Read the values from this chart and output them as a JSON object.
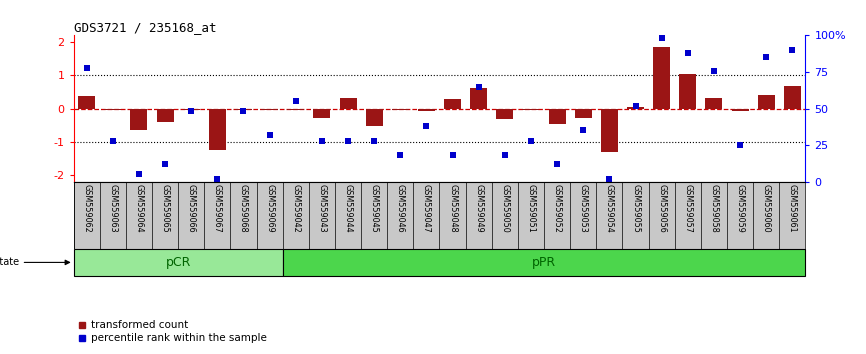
{
  "title": "GDS3721 / 235168_at",
  "samples": [
    "GSM559062",
    "GSM559063",
    "GSM559064",
    "GSM559065",
    "GSM559066",
    "GSM559067",
    "GSM559068",
    "GSM559069",
    "GSM559042",
    "GSM559043",
    "GSM559044",
    "GSM559045",
    "GSM559046",
    "GSM559047",
    "GSM559048",
    "GSM559049",
    "GSM559050",
    "GSM559051",
    "GSM559052",
    "GSM559053",
    "GSM559054",
    "GSM559055",
    "GSM559056",
    "GSM559057",
    "GSM559058",
    "GSM559059",
    "GSM559060",
    "GSM559061"
  ],
  "transformed_count": [
    0.38,
    -0.04,
    -0.65,
    -0.42,
    -0.04,
    -1.25,
    -0.04,
    -0.04,
    -0.04,
    -0.28,
    0.32,
    -0.52,
    -0.04,
    -0.08,
    0.28,
    0.62,
    -0.32,
    -0.04,
    -0.48,
    -0.28,
    -1.3,
    0.05,
    1.85,
    1.05,
    0.32,
    -0.08,
    0.42,
    0.68
  ],
  "percentile_rank": [
    78,
    28,
    5,
    12,
    48,
    2,
    48,
    32,
    55,
    28,
    28,
    28,
    18,
    38,
    18,
    65,
    18,
    28,
    12,
    35,
    2,
    52,
    98,
    88,
    76,
    25,
    85,
    90
  ],
  "pcr_count": 8,
  "ppr_count": 20,
  "bar_color": "#9B1515",
  "dot_color": "#0000CC",
  "zero_line_color": "#CC0000",
  "background_color": "#FFFFFF",
  "ylim": [
    -2.2,
    2.2
  ],
  "yticks_left": [
    -2,
    -1,
    0,
    1,
    2
  ],
  "yticks_right": [
    0,
    25,
    50,
    75,
    100
  ],
  "pcr_color": "#98E898",
  "ppr_color": "#4CD64C",
  "label_color": "#006400",
  "axis_bg": "#C8C8C8"
}
